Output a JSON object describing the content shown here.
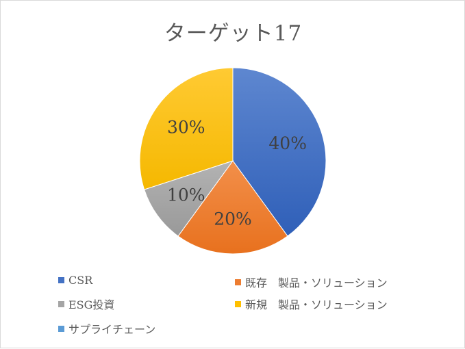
{
  "chart_data": {
    "type": "pie",
    "title": "ターゲット17",
    "categories": [
      "CSR",
      "既存　製品・ソリューション",
      "ESG投資",
      "新規　製品・ソリューション",
      "サプライチェーン"
    ],
    "values": [
      40,
      20,
      10,
      30,
      0
    ],
    "data_labels": [
      "40%",
      "20%",
      "10%",
      "30%",
      ""
    ],
    "colors": [
      "#4472C4",
      "#ED7D31",
      "#A5A5A5",
      "#FFC000",
      "#5B9BD5"
    ],
    "legend_position": "bottom"
  }
}
